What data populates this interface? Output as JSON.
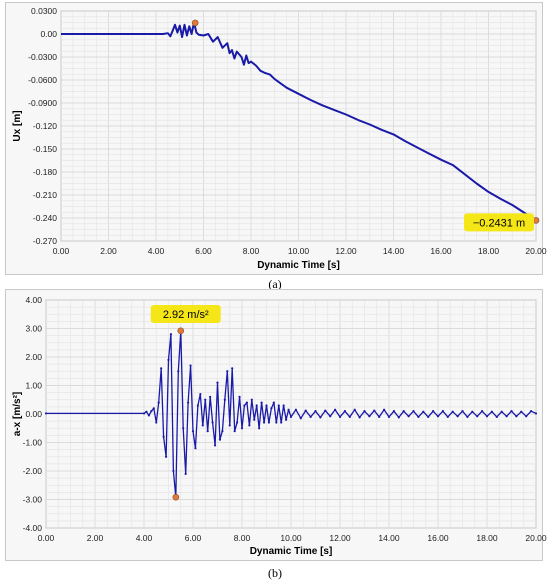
{
  "captions": {
    "a": "(a)",
    "b": "(b)"
  },
  "colors": {
    "series": "#1a1aa8",
    "marker": "#e07a3a",
    "callout": "#f5e617",
    "grid": "#dcdcdc",
    "bg": "#f7f7f7"
  },
  "chart_data": [
    {
      "id": "a",
      "type": "line",
      "title": "",
      "xlabel": "Dynamic Time [s]",
      "ylabel": "Ux [m]",
      "xlim": [
        0,
        20
      ],
      "ylim": [
        -0.27,
        0.03
      ],
      "xticks": [
        "0.00",
        "2.00",
        "4.00",
        "6.00",
        "8.00",
        "10.00",
        "12.00",
        "14.00",
        "16.00",
        "18.00",
        "20.00"
      ],
      "yticks": [
        "0.0300",
        "0.00",
        "-0.0300",
        "-0.0600",
        "-0.0900",
        "-0.120",
        "-0.150",
        "-0.180",
        "-0.210",
        "-0.240",
        "-0.270"
      ],
      "grid": true,
      "series": [
        {
          "x": [
            0,
            4.3,
            4.5,
            4.6,
            4.7,
            4.8,
            4.9,
            5.0,
            5.1,
            5.2,
            5.3,
            5.4,
            5.5,
            5.6,
            5.7,
            5.8,
            6.0,
            6.2,
            6.4,
            6.6,
            6.8,
            7.0,
            7.1,
            7.2,
            7.3,
            7.4,
            7.6,
            7.7,
            7.8,
            7.9,
            8.0,
            8.2,
            8.4,
            8.6,
            8.8,
            9.0,
            9.5,
            10.0,
            10.5,
            11.0,
            11.5,
            12.0,
            12.5,
            13.0,
            13.5,
            14.0,
            14.5,
            15.0,
            15.5,
            16.0,
            16.5,
            17.0,
            17.5,
            18.0,
            18.5,
            19.0,
            19.5,
            20.0
          ],
          "y": [
            0,
            0,
            0.001,
            -0.003,
            0.004,
            0.012,
            0.002,
            0.011,
            -0.004,
            0.012,
            -0.002,
            0.01,
            0.0,
            0.015,
            0.002,
            -0.001,
            -0.002,
            0.0,
            -0.01,
            -0.004,
            -0.018,
            -0.012,
            -0.025,
            -0.021,
            -0.032,
            -0.023,
            -0.03,
            -0.04,
            -0.028,
            -0.038,
            -0.036,
            -0.041,
            -0.048,
            -0.051,
            -0.053,
            -0.059,
            -0.07,
            -0.078,
            -0.086,
            -0.093,
            -0.099,
            -0.105,
            -0.112,
            -0.118,
            -0.125,
            -0.131,
            -0.14,
            -0.148,
            -0.156,
            -0.164,
            -0.171,
            -0.183,
            -0.195,
            -0.206,
            -0.215,
            -0.223,
            -0.233,
            -0.2431
          ]
        }
      ],
      "markers": [
        {
          "x": 5.65,
          "y": 0.0145
        },
        {
          "x": 20.0,
          "y": -0.2431
        }
      ],
      "callout": "−0.2431 m"
    },
    {
      "id": "b",
      "type": "line",
      "title": "",
      "xlabel": "Dynamic Time [s]",
      "ylabel": "a-x  [m/s²]",
      "xlim": [
        0,
        20
      ],
      "ylim": [
        -4,
        4
      ],
      "xticks": [
        "0.00",
        "2.00",
        "4.00",
        "6.00",
        "8.00",
        "10.00",
        "12.00",
        "14.00",
        "16.00",
        "18.00",
        "20.00"
      ],
      "yticks": [
        "4.00",
        "3.00",
        "2.00",
        "1.00",
        "0.00",
        "-1.00",
        "-2.00",
        "-3.00",
        "-4.00"
      ],
      "grid": true,
      "series": [
        {
          "x": [
            0,
            4.0,
            4.1,
            4.2,
            4.3,
            4.4,
            4.5,
            4.6,
            4.7,
            4.8,
            4.9,
            5.0,
            5.1,
            5.2,
            5.3,
            5.4,
            5.5,
            5.6,
            5.7,
            5.8,
            5.9,
            6.0,
            6.1,
            6.2,
            6.3,
            6.4,
            6.5,
            6.6,
            6.7,
            6.8,
            6.9,
            7.0,
            7.1,
            7.2,
            7.3,
            7.4,
            7.5,
            7.6,
            7.7,
            7.8,
            7.9,
            8.0,
            8.1,
            8.2,
            8.3,
            8.4,
            8.5,
            8.6,
            8.7,
            8.8,
            8.9,
            9.0,
            9.1,
            9.2,
            9.3,
            9.4,
            9.5,
            9.6,
            9.7,
            9.8,
            9.9,
            10.0,
            10.2,
            10.4,
            10.6,
            10.8,
            11.0,
            11.2,
            11.4,
            11.6,
            11.8,
            12.0,
            12.2,
            12.4,
            12.6,
            12.8,
            13.0,
            13.2,
            13.4,
            13.6,
            13.8,
            14.0,
            14.2,
            14.4,
            14.6,
            14.8,
            15.0,
            15.2,
            15.4,
            15.6,
            15.8,
            16.0,
            16.2,
            16.4,
            16.6,
            16.8,
            17.0,
            17.2,
            17.4,
            17.6,
            17.8,
            18.0,
            18.2,
            18.4,
            18.6,
            18.8,
            19.0,
            19.2,
            19.4,
            19.6,
            19.8,
            20.0
          ],
          "y": [
            0.02,
            0.02,
            0.08,
            -0.05,
            0.1,
            0.2,
            -0.3,
            0.4,
            1.6,
            -0.8,
            -1.5,
            1.9,
            2.8,
            -2.0,
            -2.92,
            1.5,
            2.92,
            -0.5,
            -2.1,
            0.4,
            1.7,
            -0.6,
            -1.2,
            0.3,
            0.7,
            -0.4,
            0.5,
            -0.6,
            0.6,
            -0.3,
            -1.1,
            1.1,
            -0.9,
            -0.6,
            0.5,
            1.5,
            -0.4,
            1.6,
            -0.6,
            -0.3,
            0.6,
            -0.5,
            0.3,
            0.4,
            -0.4,
            0.5,
            -0.2,
            0.3,
            -0.5,
            0.4,
            -0.3,
            0.3,
            -0.3,
            0.2,
            0.4,
            -0.3,
            0.3,
            -0.3,
            0.3,
            -0.2,
            0.15,
            -0.1,
            0.15,
            -0.15,
            0.12,
            -0.1,
            0.1,
            -0.12,
            0.12,
            -0.08,
            0.15,
            -0.1,
            0.1,
            -0.1,
            0.15,
            -0.12,
            0.1,
            -0.08,
            0.12,
            -0.1,
            0.15,
            -0.1,
            0.1,
            -0.12,
            0.1,
            -0.08,
            0.1,
            -0.1,
            0.08,
            -0.1,
            0.1,
            -0.08,
            0.1,
            -0.1,
            0.08,
            -0.08,
            0.1,
            -0.1,
            0.08,
            -0.08,
            0.1,
            -0.08,
            0.08,
            -0.1,
            0.08,
            -0.08,
            0.1,
            -0.08,
            0.08,
            -0.08,
            0.1,
            0.02
          ]
        }
      ],
      "markers": [
        {
          "x": 5.3,
          "y": -2.92
        },
        {
          "x": 5.5,
          "y": 2.92
        }
      ],
      "callout": "2.92 m/s²"
    }
  ]
}
